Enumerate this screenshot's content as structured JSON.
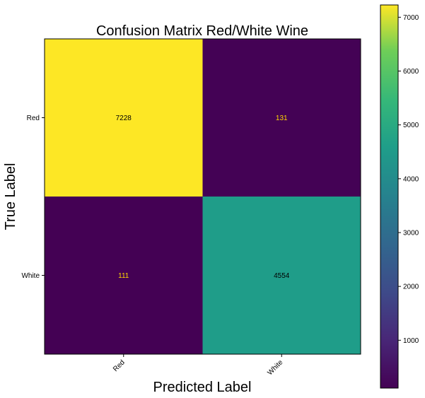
{
  "chart_data": {
    "type": "heatmap",
    "title": "Confusion Matrix Red/White Wine",
    "xlabel": "Predicted Label",
    "ylabel": "True Label",
    "x_categories": [
      "Red",
      "White"
    ],
    "y_categories": [
      "Red",
      "White"
    ],
    "values": [
      [
        7228,
        131
      ],
      [
        111,
        4554
      ]
    ],
    "colormap": "viridis",
    "colorbar": {
      "range": [
        111,
        7228
      ],
      "ticks": [
        1000,
        2000,
        3000,
        4000,
        5000,
        6000,
        7000
      ]
    },
    "cell_label_colors": {
      "on_light": "#000000",
      "on_dark": "#ffd700"
    }
  }
}
